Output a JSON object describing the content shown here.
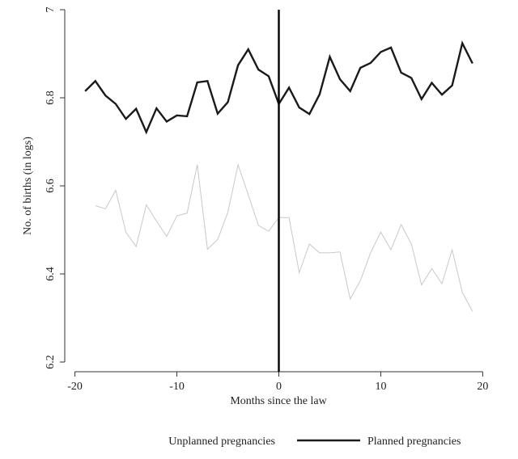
{
  "chart_data": {
    "type": "line",
    "title": "",
    "xlabel": "Months since the law",
    "ylabel": "No. of births (in logs)",
    "xlim": [
      -21,
      21
    ],
    "ylim": [
      6.2,
      7.0
    ],
    "xticks": [
      -20,
      -10,
      0,
      10,
      20
    ],
    "xtick_labels": [
      "-20",
      "-10",
      "0",
      "10",
      "20"
    ],
    "yticks": [
      6.2,
      6.4,
      6.6,
      6.8,
      7.0
    ],
    "ytick_labels": [
      "6.2",
      "6.4",
      "6.6",
      "6.8",
      "7"
    ],
    "grid": false,
    "legend_position": "bottom",
    "reference_line_x": 0,
    "colors": {
      "planned": "#1a1a1a",
      "unplanned": "#c8c8c8",
      "axis": "#333333",
      "reference": "#000000"
    },
    "series": [
      {
        "name": "Unplanned pregnancies",
        "style": "thin-light",
        "x": [
          -18,
          -17,
          -16,
          -15,
          -14,
          -13,
          -12,
          -11,
          -10,
          -9,
          -8,
          -7,
          -6,
          -5,
          -4,
          -3,
          -2,
          -1,
          0,
          1,
          2,
          3,
          4,
          5,
          6,
          7,
          8,
          9,
          10,
          11,
          12,
          13,
          14,
          15,
          16,
          17,
          18,
          19
        ],
        "y": [
          6.555,
          6.548,
          6.59,
          6.495,
          6.462,
          6.557,
          6.52,
          6.485,
          6.532,
          6.538,
          6.648,
          6.456,
          6.478,
          6.54,
          6.648,
          6.58,
          6.51,
          6.497,
          6.528,
          6.528,
          6.403,
          6.468,
          6.448,
          6.448,
          6.45,
          6.343,
          6.385,
          6.448,
          6.495,
          6.455,
          6.512,
          6.468,
          6.375,
          6.412,
          6.378,
          6.455,
          6.358,
          6.315
        ]
      },
      {
        "name": "Planned pregnancies",
        "style": "thick-dark",
        "x": [
          -19,
          -18,
          -17,
          -16,
          -15,
          -14,
          -13,
          -12,
          -11,
          -10,
          -9,
          -8,
          -7,
          -6,
          -5,
          -4,
          -3,
          -2,
          -1,
          0,
          1,
          2,
          3,
          4,
          5,
          6,
          7,
          8,
          9,
          10,
          11,
          12,
          13,
          14,
          15,
          16,
          17,
          18,
          19
        ],
        "y": [
          6.815,
          6.838,
          6.805,
          6.786,
          6.752,
          6.775,
          6.722,
          6.776,
          6.746,
          6.76,
          6.758,
          6.835,
          6.838,
          6.764,
          6.79,
          6.874,
          6.91,
          6.864,
          6.849,
          6.786,
          6.823,
          6.778,
          6.763,
          6.808,
          6.893,
          6.842,
          6.815,
          6.868,
          6.879,
          6.904,
          6.914,
          6.857,
          6.845,
          6.797,
          6.834,
          6.807,
          6.828,
          6.924,
          6.878
        ]
      }
    ]
  }
}
